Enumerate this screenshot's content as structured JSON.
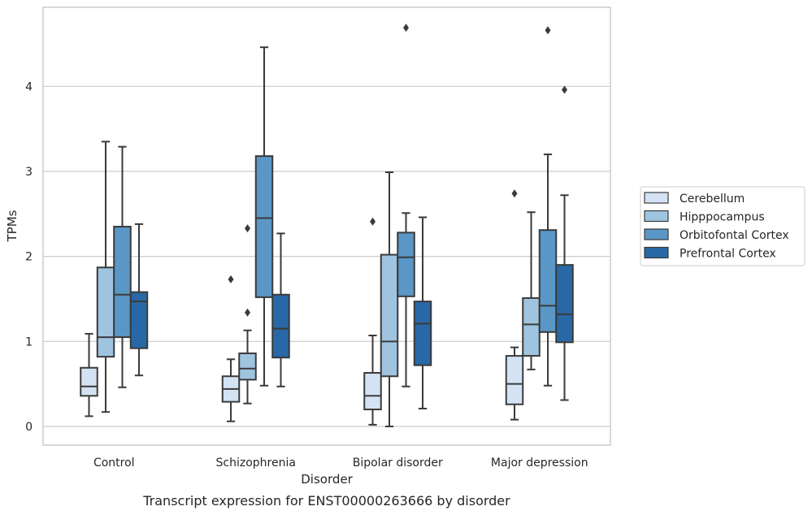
{
  "chart_data": {
    "type": "box",
    "title": "",
    "caption": "Transcript expression for ENST00000263666 by disorder",
    "xlabel": "Disorder",
    "ylabel": "TPMs",
    "ylim": [
      -0.22,
      4.93
    ],
    "yticks": [
      0,
      1,
      2,
      3,
      4
    ],
    "grid": "horizontal",
    "legend_position": "right",
    "categories": [
      "Control",
      "Schizophrenia",
      "Bipolar disorder",
      "Major depression"
    ],
    "series": [
      {
        "name": "Cerebellum",
        "color": "#d4e3f3",
        "boxes": [
          {
            "whisker_low": 0.12,
            "q1": 0.36,
            "median": 0.47,
            "q3": 0.69,
            "whisker_high": 1.09,
            "outliers": []
          },
          {
            "whisker_low": 0.06,
            "q1": 0.29,
            "median": 0.44,
            "q3": 0.59,
            "whisker_high": 0.79,
            "outliers": [
              1.73
            ]
          },
          {
            "whisker_low": 0.02,
            "q1": 0.2,
            "median": 0.36,
            "q3": 0.63,
            "whisker_high": 1.07,
            "outliers": [
              2.41
            ]
          },
          {
            "whisker_low": 0.08,
            "q1": 0.26,
            "median": 0.5,
            "q3": 0.83,
            "whisker_high": 0.93,
            "outliers": [
              2.74
            ]
          }
        ]
      },
      {
        "name": "Hipppocampus",
        "color": "#9fc4df",
        "boxes": [
          {
            "whisker_low": 0.17,
            "q1": 0.82,
            "median": 1.05,
            "q3": 1.87,
            "whisker_high": 3.35,
            "outliers": []
          },
          {
            "whisker_low": 0.27,
            "q1": 0.55,
            "median": 0.68,
            "q3": 0.86,
            "whisker_high": 1.13,
            "outliers": [
              2.33,
              1.34
            ]
          },
          {
            "whisker_low": 0.0,
            "q1": 0.59,
            "median": 1.0,
            "q3": 2.02,
            "whisker_high": 2.99,
            "outliers": []
          },
          {
            "whisker_low": 0.67,
            "q1": 0.83,
            "median": 1.2,
            "q3": 1.51,
            "whisker_high": 2.52,
            "outliers": []
          }
        ]
      },
      {
        "name": "Orbitofontal Cortex",
        "color": "#5a97c6",
        "boxes": [
          {
            "whisker_low": 0.46,
            "q1": 1.05,
            "median": 1.55,
            "q3": 2.35,
            "whisker_high": 3.29,
            "outliers": []
          },
          {
            "whisker_low": 0.48,
            "q1": 1.52,
            "median": 2.45,
            "q3": 3.18,
            "whisker_high": 4.46,
            "outliers": []
          },
          {
            "whisker_low": 0.47,
            "q1": 1.53,
            "median": 1.99,
            "q3": 2.28,
            "whisker_high": 2.51,
            "outliers": [
              4.69
            ]
          },
          {
            "whisker_low": 0.48,
            "q1": 1.11,
            "median": 1.42,
            "q3": 2.31,
            "whisker_high": 3.2,
            "outliers": [
              4.66
            ]
          }
        ]
      },
      {
        "name": "Prefrontal Cortex",
        "color": "#2868a6",
        "boxes": [
          {
            "whisker_low": 0.6,
            "q1": 0.92,
            "median": 1.47,
            "q3": 1.58,
            "whisker_high": 2.38,
            "outliers": []
          },
          {
            "whisker_low": 0.47,
            "q1": 0.81,
            "median": 1.15,
            "q3": 1.55,
            "whisker_high": 2.27,
            "outliers": []
          },
          {
            "whisker_low": 0.21,
            "q1": 0.72,
            "median": 1.21,
            "q3": 1.47,
            "whisker_high": 2.46,
            "outliers": []
          },
          {
            "whisker_low": 0.31,
            "q1": 0.99,
            "median": 1.32,
            "q3": 1.9,
            "whisker_high": 2.72,
            "outliers": [
              3.96
            ]
          }
        ]
      }
    ]
  }
}
